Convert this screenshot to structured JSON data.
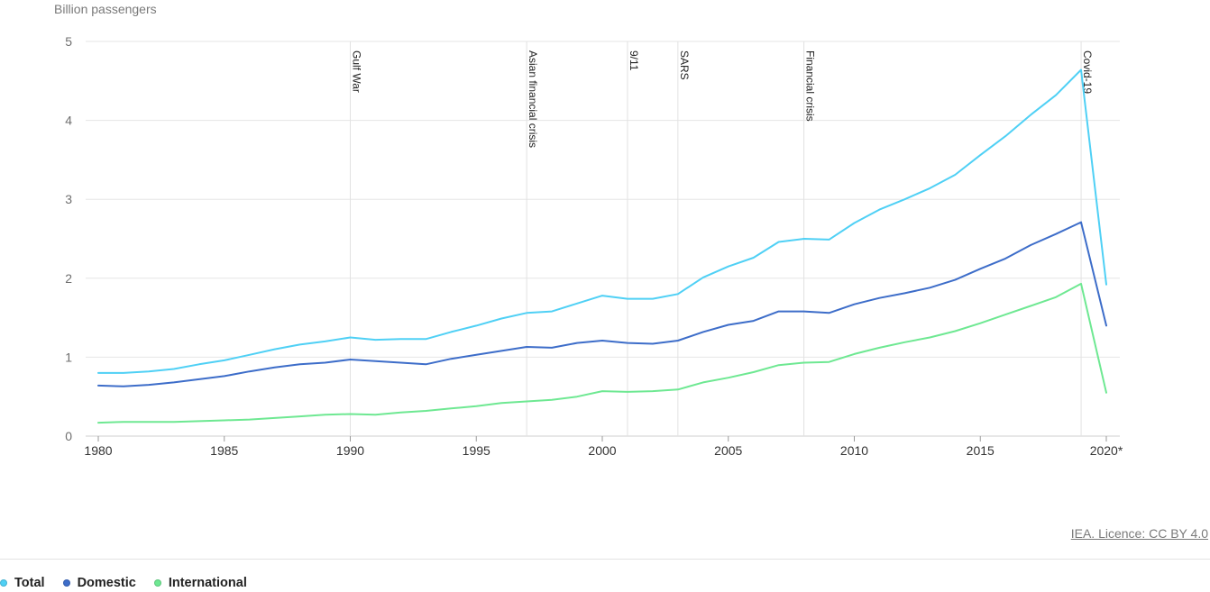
{
  "chart_data": {
    "type": "line",
    "ylabel": "Billion passengers",
    "x": [
      1980,
      1981,
      1982,
      1983,
      1984,
      1985,
      1986,
      1987,
      1988,
      1989,
      1990,
      1991,
      1992,
      1993,
      1994,
      1995,
      1996,
      1997,
      1998,
      1999,
      2000,
      2001,
      2002,
      2003,
      2004,
      2005,
      2006,
      2007,
      2008,
      2009,
      2010,
      2011,
      2012,
      2013,
      2014,
      2015,
      2016,
      2017,
      2018,
      2019,
      2020
    ],
    "x_tick_labels": [
      "1980",
      "1985",
      "1990",
      "1995",
      "2000",
      "2005",
      "2010",
      "2015",
      "2020*"
    ],
    "x_tick_values": [
      1980,
      1985,
      1990,
      1995,
      2000,
      2005,
      2010,
      2015,
      2020
    ],
    "y_ticks": [
      0,
      1,
      2,
      3,
      4,
      5
    ],
    "ylim": [
      0,
      5
    ],
    "grid": true,
    "legend_position": "bottom-left",
    "series": [
      {
        "name": "Total",
        "color": "#4fd0f5",
        "values": [
          0.8,
          0.8,
          0.82,
          0.85,
          0.91,
          0.96,
          1.03,
          1.1,
          1.16,
          1.2,
          1.25,
          1.22,
          1.23,
          1.23,
          1.32,
          1.4,
          1.49,
          1.56,
          1.58,
          1.68,
          1.78,
          1.74,
          1.74,
          1.8,
          2.01,
          2.15,
          2.26,
          2.46,
          2.5,
          2.49,
          2.7,
          2.87,
          3.0,
          3.14,
          3.31,
          3.56,
          3.8,
          4.07,
          4.32,
          4.64,
          1.92
        ]
      },
      {
        "name": "Domestic",
        "color": "#3d6dc9",
        "values": [
          0.64,
          0.63,
          0.65,
          0.68,
          0.72,
          0.76,
          0.82,
          0.87,
          0.91,
          0.93,
          0.97,
          0.95,
          0.93,
          0.91,
          0.98,
          1.03,
          1.08,
          1.13,
          1.12,
          1.18,
          1.21,
          1.18,
          1.17,
          1.21,
          1.32,
          1.41,
          1.46,
          1.58,
          1.58,
          1.56,
          1.67,
          1.75,
          1.81,
          1.88,
          1.98,
          2.12,
          2.25,
          2.42,
          2.56,
          2.71,
          1.4
        ]
      },
      {
        "name": "International",
        "color": "#6ee892",
        "values": [
          0.17,
          0.18,
          0.18,
          0.18,
          0.19,
          0.2,
          0.21,
          0.23,
          0.25,
          0.27,
          0.28,
          0.27,
          0.3,
          0.32,
          0.35,
          0.38,
          0.42,
          0.44,
          0.46,
          0.5,
          0.57,
          0.56,
          0.57,
          0.59,
          0.68,
          0.74,
          0.81,
          0.9,
          0.93,
          0.94,
          1.04,
          1.12,
          1.19,
          1.25,
          1.33,
          1.43,
          1.54,
          1.65,
          1.76,
          1.93,
          0.55
        ]
      }
    ],
    "annotations": [
      {
        "x": 1990,
        "label": "Gulf War"
      },
      {
        "x": 1997,
        "label": "Asian financial crisis"
      },
      {
        "x": 2001,
        "label": "9/11"
      },
      {
        "x": 2003,
        "label": "SARS"
      },
      {
        "x": 2008,
        "label": "Financial crisis"
      },
      {
        "x": 2019,
        "label": "Covid-19"
      }
    ]
  },
  "credit": "IEA. Licence: CC BY 4.0"
}
